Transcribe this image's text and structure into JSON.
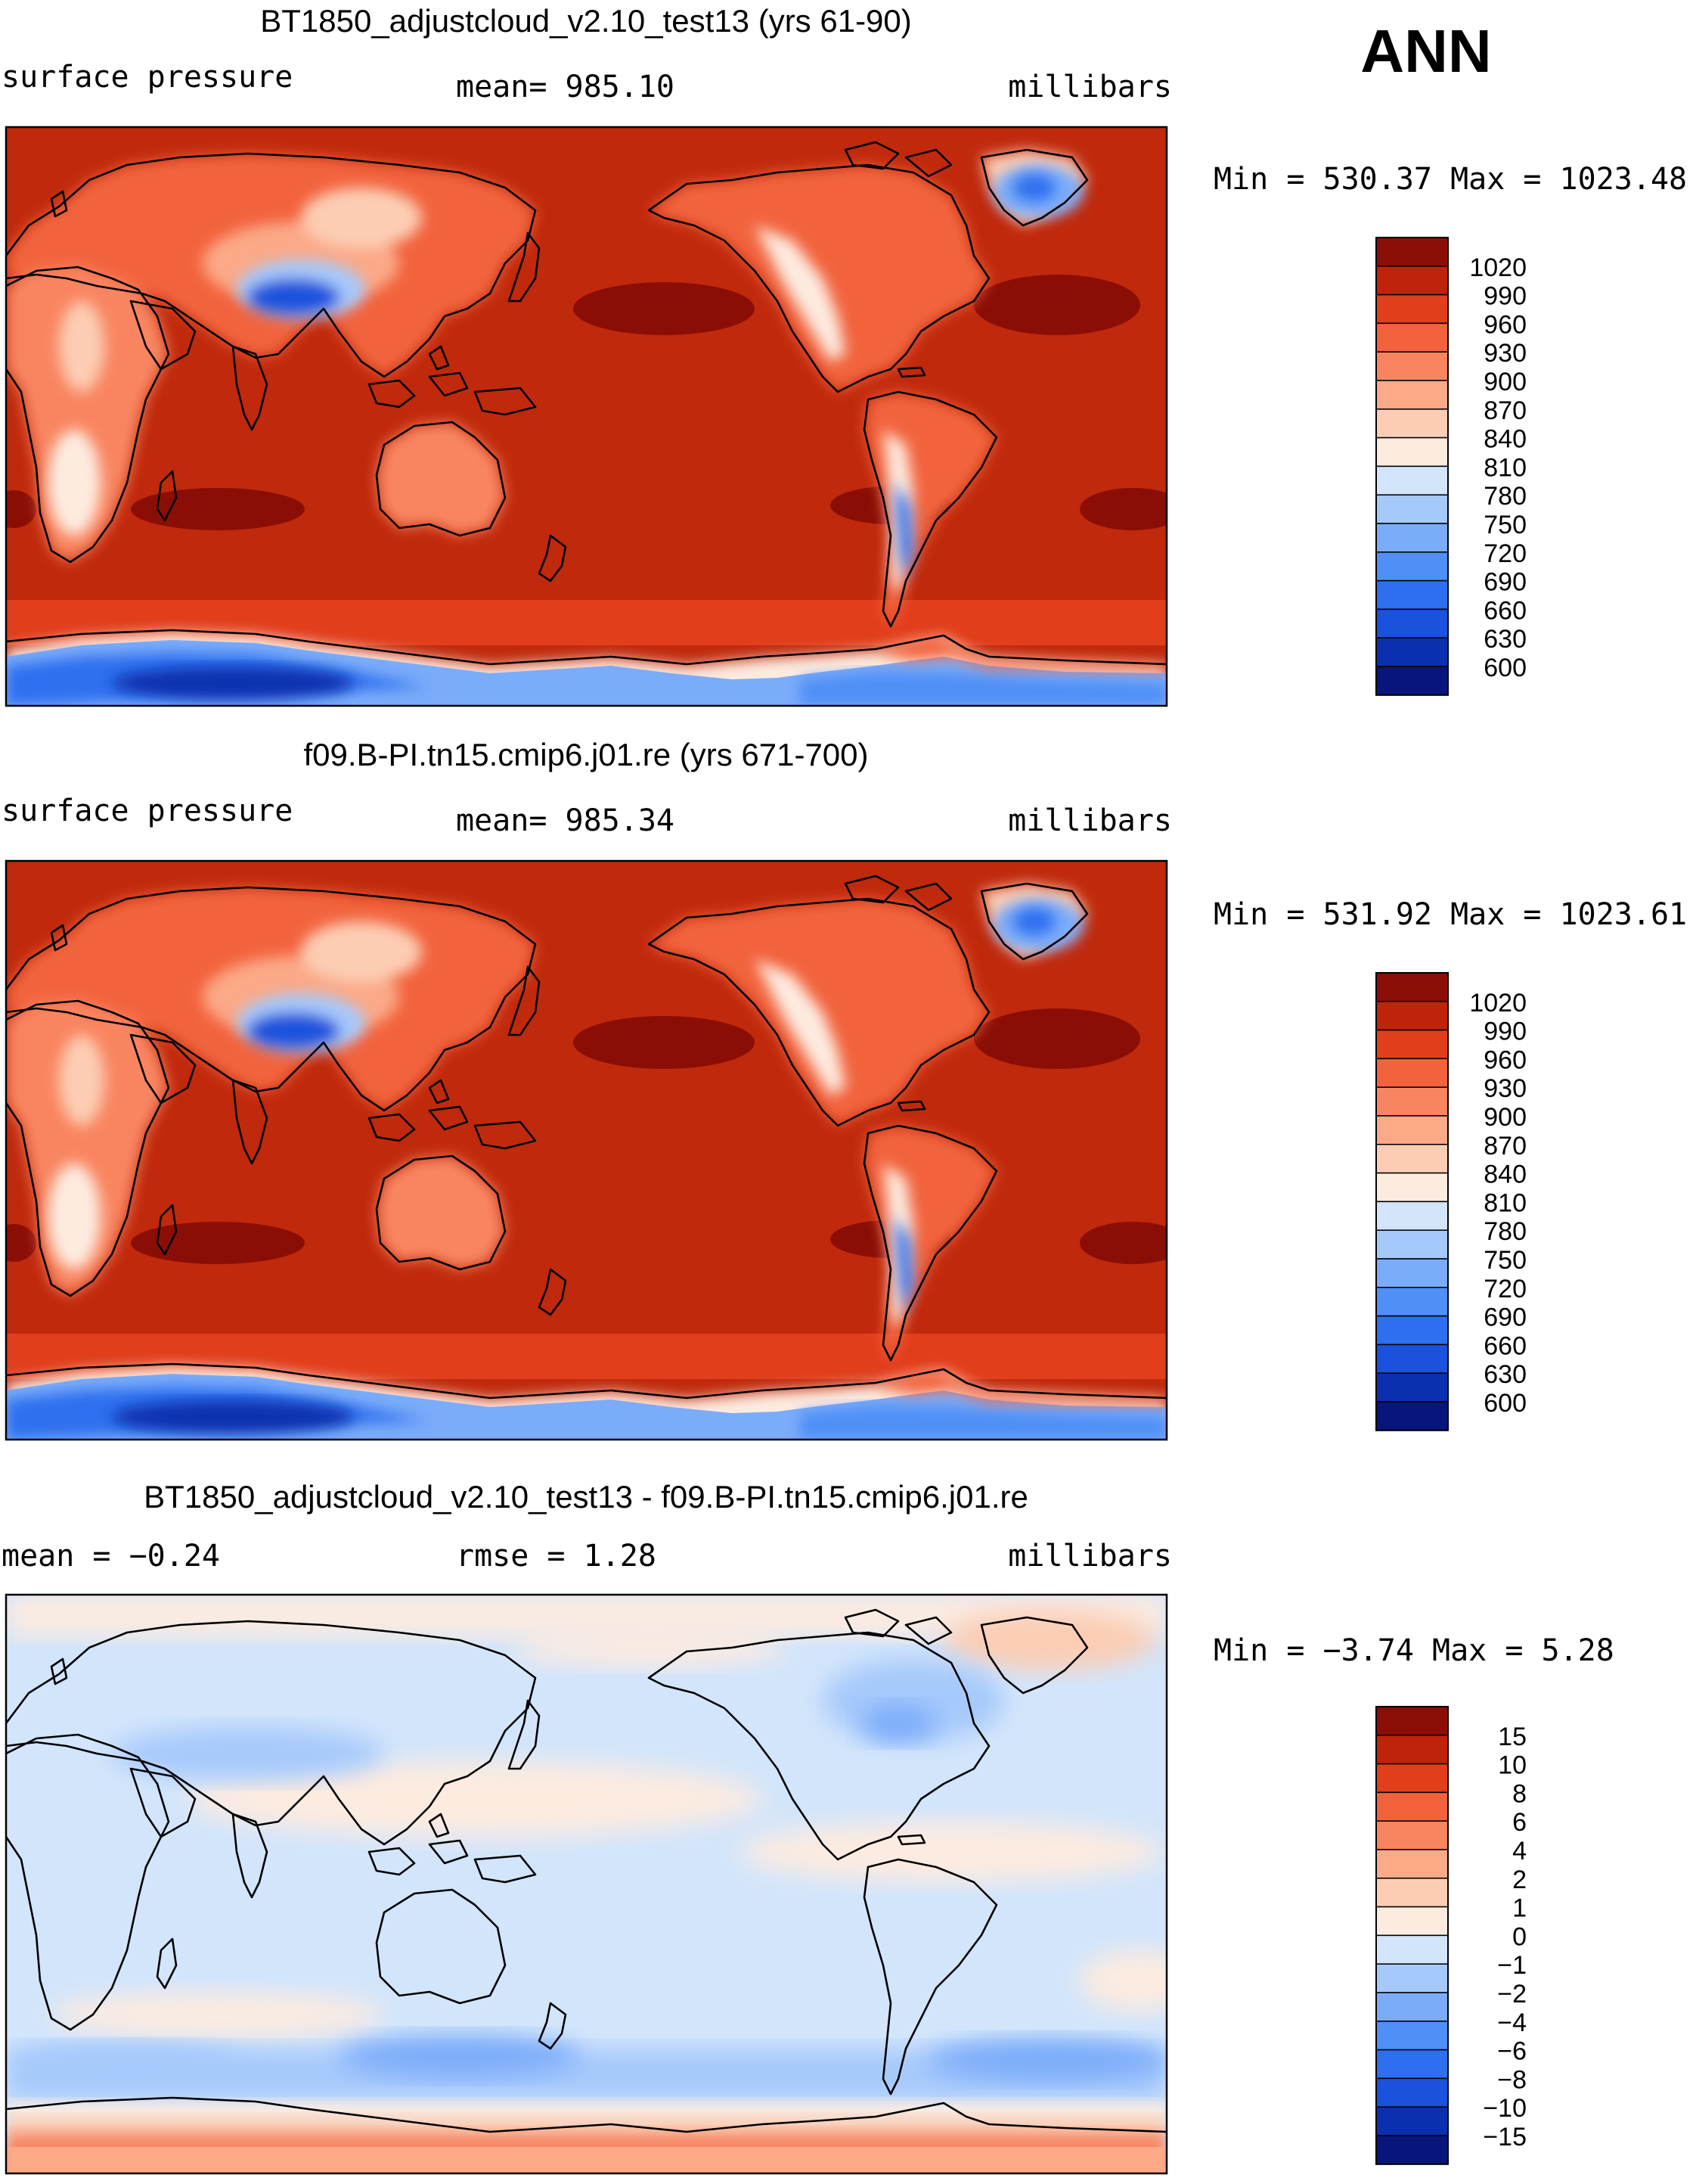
{
  "season": "ANN",
  "colors": {
    "abs_scale": [
      "#08157a",
      "#0a30b0",
      "#1a52dd",
      "#2e6fef",
      "#4f8ff6",
      "#7bacfa",
      "#a6c9fb",
      "#d2e5fb",
      "#fdebe0",
      "#fccdb4",
      "#fba987",
      "#f98560",
      "#f2633d",
      "#e13e1c",
      "#bf240a",
      "#8b0e06"
    ],
    "diff_scale": [
      "#08157a",
      "#0a30b0",
      "#1a52dd",
      "#2e6fef",
      "#4f8ff6",
      "#7bacfa",
      "#a6c9fb",
      "#d2e5fb",
      "#fdebe0",
      "#fccdb4",
      "#fba987",
      "#f98560",
      "#f2633d",
      "#e13e1c",
      "#bf240a",
      "#8b0e06"
    ]
  },
  "panels": [
    {
      "id": "test",
      "title": "BT1850_adjustcloud_v2.10_test13 (yrs 61-90)",
      "left_label": "surface pressure",
      "center_label": "mean=  985.10",
      "right_label": "millibars",
      "minmax": "Min  =  530.37  Max  =  1023.48",
      "colorbar_levels": [
        "1020",
        "990",
        "960",
        "930",
        "900",
        "870",
        "840",
        "810",
        "780",
        "750",
        "720",
        "690",
        "660",
        "630",
        "600"
      ],
      "map_variant": "absolute"
    },
    {
      "id": "control",
      "title": "f09.B-PI.tn15.cmip6.j01.re (yrs 671-700)",
      "left_label": "surface pressure",
      "center_label": "mean=  985.34",
      "right_label": "millibars",
      "minmax": "Min  =  531.92  Max  =  1023.61",
      "colorbar_levels": [
        "1020",
        "990",
        "960",
        "930",
        "900",
        "870",
        "840",
        "810",
        "780",
        "750",
        "720",
        "690",
        "660",
        "630",
        "600"
      ],
      "map_variant": "absolute"
    },
    {
      "id": "difference",
      "title": "BT1850_adjustcloud_v2.10_test13 - f09.B-PI.tn15.cmip6.j01.re",
      "left_label": "mean  =   −0.24",
      "center_label": "rmse  =     1.28",
      "right_label": "millibars",
      "minmax": "Min  =    −3.74  Max  =      5.28",
      "colorbar_levels": [
        "15",
        "10",
        "8",
        "6",
        "4",
        "2",
        "1",
        "0",
        "−1",
        "−2",
        "−4",
        "−6",
        "−8",
        "−10",
        "−15"
      ],
      "map_variant": "difference"
    }
  ]
}
